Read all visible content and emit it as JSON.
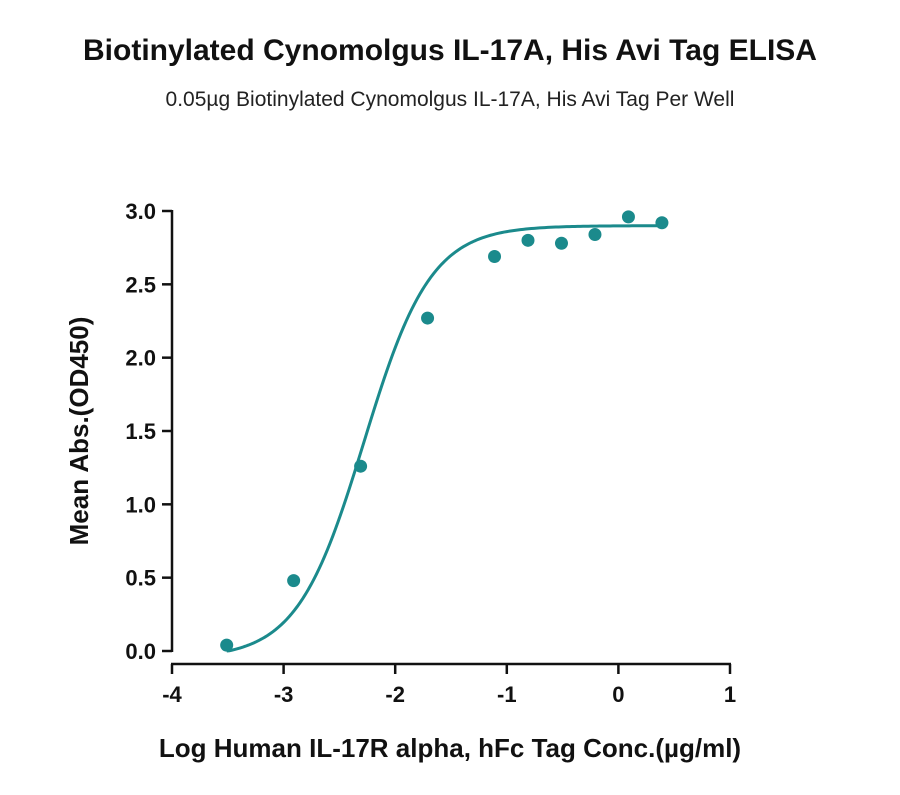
{
  "chart_data": {
    "type": "scatter",
    "title": "Biotinylated Cynomolgus IL-17A, His Avi Tag ELISA",
    "subtitle": "0.05µg Biotinylated Cynomolgus IL-17A, His Avi Tag Per Well",
    "xlabel": "Log Human IL-17R alpha, hFc Tag Conc.(µg/ml)",
    "ylabel": "Mean Abs.(OD450)",
    "xlim": [
      -4,
      1
    ],
    "ylim": [
      0,
      3.0
    ],
    "x_ticks": [
      "-4",
      "-3",
      "-2",
      "-1",
      "0",
      "1"
    ],
    "y_ticks": [
      "0.0",
      "0.5",
      "1.0",
      "1.5",
      "2.0",
      "2.5",
      "3.0"
    ],
    "grid": false,
    "color": "#1b8a8c",
    "series": [
      {
        "points": [
          {
            "x": -3.51,
            "y": 0.04
          },
          {
            "x": -2.91,
            "y": 0.48
          },
          {
            "x": -2.31,
            "y": 1.26
          },
          {
            "x": -1.71,
            "y": 2.27
          },
          {
            "x": -1.11,
            "y": 2.69
          },
          {
            "x": -0.81,
            "y": 2.8
          },
          {
            "x": -0.51,
            "y": 2.78
          },
          {
            "x": -0.21,
            "y": 2.84
          },
          {
            "x": 0.09,
            "y": 2.96
          },
          {
            "x": 0.39,
            "y": 2.92
          }
        ],
        "fit": {
          "model": "4PL",
          "bottom": -0.05,
          "top": 2.9,
          "log_ec50": -2.28,
          "hill_slope": 1.45
        }
      }
    ]
  }
}
